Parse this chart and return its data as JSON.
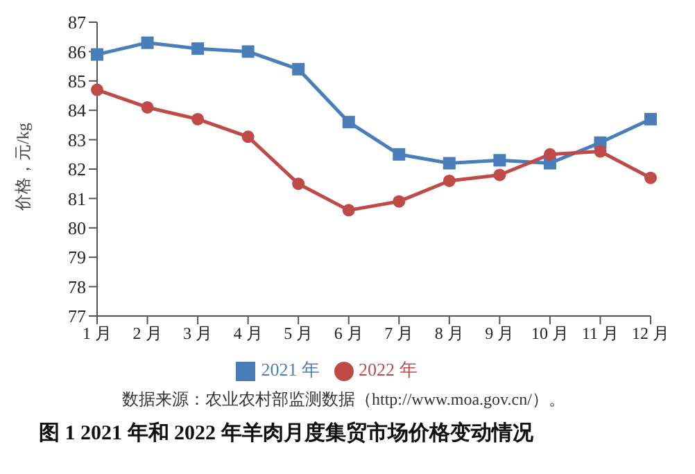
{
  "chart_data": {
    "type": "line",
    "title": "图 1  2021 年和 2022 年羊肉月度集贸市场价格变动情况",
    "ylabel": "价格，元/kg",
    "categories": [
      "1 月",
      "2 月",
      "3 月",
      "4 月",
      "5 月",
      "6 月",
      "7 月",
      "8 月",
      "9 月",
      "10 月",
      "11 月",
      "12 月"
    ],
    "series": [
      {
        "name": "2021 年",
        "color": "#4a7ebb",
        "marker": "square",
        "values": [
          85.9,
          86.3,
          86.1,
          86.0,
          85.4,
          83.6,
          82.5,
          82.2,
          82.3,
          82.2,
          82.9,
          83.7
        ]
      },
      {
        "name": "2022 年",
        "color": "#be4b48",
        "marker": "circle",
        "values": [
          84.7,
          84.1,
          83.7,
          83.1,
          81.5,
          80.6,
          80.9,
          81.6,
          81.8,
          82.5,
          82.6,
          81.7
        ]
      }
    ],
    "ylim": [
      77,
      87
    ],
    "yticks": [
      77,
      78,
      79,
      80,
      81,
      82,
      83,
      84,
      85,
      86,
      87
    ],
    "grid": false,
    "legend": "bottom",
    "annotations": [
      "数据来源：农业农村部监测数据（http://www.moa.gov.cn/）。"
    ]
  }
}
